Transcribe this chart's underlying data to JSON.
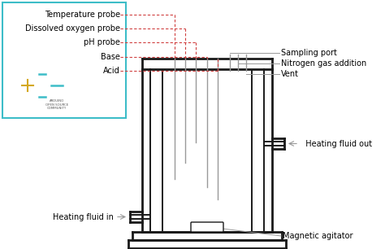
{
  "bg_color": "#ffffff",
  "box_color": "#3dbdc8",
  "left_labels_text": [
    "Temperature probe",
    "Dissolved oxygen probe",
    "pH probe",
    "Base",
    "Acid"
  ],
  "right_labels_text": [
    "Sampling port",
    "Nitrogen gas addition",
    "Vent"
  ],
  "label_heating_fluid_out": "  Heating fluid out",
  "label_heating_fluid_in": "Heating fluid in",
  "label_magnetic_agitator": "Magnetic agitator",
  "dashed_color": "#d04040",
  "line_color": "#1a1a1a",
  "probe_color": "#999999",
  "font_size": 7.0,
  "logo_color": "#3dbdc8",
  "logo_gold": "#d4a820"
}
